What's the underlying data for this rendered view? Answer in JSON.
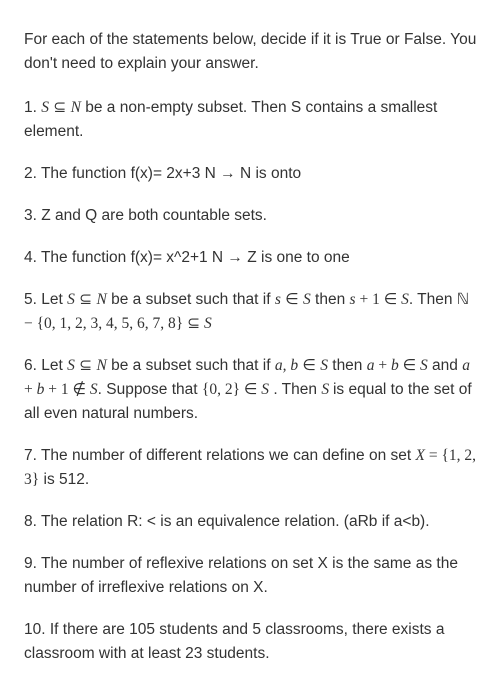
{
  "document": {
    "text_color": "#333333",
    "background_color": "#ffffff",
    "font_size": 15.5,
    "line_height": 1.55,
    "intro": "For each of the statements below, decide if it is True or False. You don't need to explain your answer.",
    "questions": {
      "q1_prefix": "1. ",
      "q1_a": "S",
      "q1_b": " ⊆ ",
      "q1_c": "N",
      "q1_d": " be a non-empty subset. Then S contains a smallest element.",
      "q2": "2. The function f(x)= 2x+3 N → N is onto",
      "q3": "3. Z and Q are both countable sets.",
      "q4": "4. The function f(x)= x^2+1 N → Z is one to one",
      "q5_prefix": "5. Let ",
      "q5_a": "S",
      "q5_b": " ⊆ ",
      "q5_c": "N",
      "q5_d": " be a subset such that if ",
      "q5_e": "s",
      "q5_f": " ∈ ",
      "q5_g": "S",
      "q5_h": " then ",
      "q5_i": "s",
      "q5_j": " + 1 ∈ ",
      "q5_k": "S",
      "q5_l": ". Then ",
      "q5_m": "ℕ − {0, 1, 2, 3, 4, 5, 6, 7, 8} ⊆ ",
      "q5_n": "S",
      "q6_prefix": "6. Let ",
      "q6_a": "S",
      "q6_b": " ⊆ ",
      "q6_c": "N",
      "q6_d": " be a subset such that if ",
      "q6_e": "a, b",
      "q6_f": " ∈ ",
      "q6_g": "S",
      "q6_h": " then ",
      "q6_i": "a",
      "q6_j": " + ",
      "q6_k": "b",
      "q6_l": " ∈ ",
      "q6_m": "S",
      "q6_n": " and ",
      "q6_o": "a",
      "q6_p": " + ",
      "q6_q": "b",
      "q6_r": " + 1 ∉ ",
      "q6_s": "S",
      "q6_t": ". Suppose that ",
      "q6_u": "{0, 2} ∈ ",
      "q6_v": "S",
      "q6_w": " . Then ",
      "q6_x": " S ",
      "q6_y": " is equal to the set of all even natural numbers.",
      "q7_prefix": "7. The number of different relations we can define on set ",
      "q7_a": "X",
      "q7_b": "  =  {1, 2, 3}",
      "q7_c": " is 512.",
      "q8": "8. The relation R: < is an equivalence relation. (aRb if a<b).",
      "q9": "9. The number of reflexive relations on set X is the same as the number of irreflexive relations on X.",
      "q10": "10. If there are 105 students and 5 classrooms, there exists a classroom with at least 23 students."
    }
  }
}
